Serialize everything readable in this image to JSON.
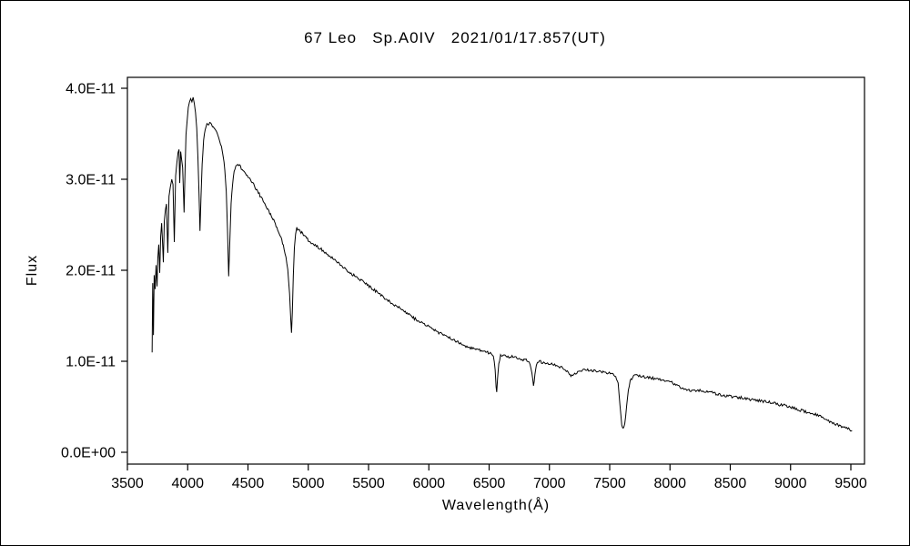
{
  "observation": {
    "object": "67 Leo",
    "spectral_type": "A0IV",
    "date_ut": "2021/01/17.857"
  },
  "chart_data": {
    "type": "line",
    "title": "67 Leo   Sp.A0IV   2021/01/17.857(UT)",
    "xlabel": "Wavelength(Å)",
    "ylabel": "Flux",
    "xlim": [
      3500,
      9500
    ],
    "ylim_unit_1e-11": [
      0,
      4.0
    ],
    "grid": false,
    "legend": "none",
    "line_color": "#000000",
    "background": "#ffffff",
    "x_ticks": [
      3500,
      4000,
      4500,
      5000,
      5500,
      6000,
      6500,
      7000,
      7500,
      8000,
      8500,
      9000,
      9500
    ],
    "y_ticks": [
      {
        "value": 0.0,
        "label": "0.0E+00"
      },
      {
        "value": 1.0,
        "label": "1.0E-11"
      },
      {
        "value": 2.0,
        "label": "2.0E-11"
      },
      {
        "value": 3.0,
        "label": "3.0E-11"
      },
      {
        "value": 4.0,
        "label": "4.0E-11"
      }
    ],
    "y_value_scale": 1e-11,
    "render": {
      "noise_amplitude": 0.015,
      "sample_step_angstrom": 8
    },
    "series": [
      {
        "name": "67 Leo spectrum",
        "x": [
          3705,
          3710,
          3716,
          3722,
          3730,
          3738,
          3746,
          3752,
          3760,
          3768,
          3776,
          3784,
          3792,
          3798,
          3806,
          3815,
          3824,
          3835,
          3845,
          3856,
          3868,
          3878,
          3889,
          3900,
          3910,
          3920,
          3928,
          3934,
          3942,
          3950,
          3958,
          3965,
          3970,
          3978,
          3986,
          3995,
          4005,
          4015,
          4025,
          4035,
          4045,
          4055,
          4065,
          4075,
          4085,
          4094,
          4102,
          4110,
          4120,
          4132,
          4145,
          4160,
          4175,
          4190,
          4205,
          4220,
          4235,
          4250,
          4265,
          4280,
          4295,
          4308,
          4320,
          4330,
          4340,
          4350,
          4360,
          4372,
          4385,
          4400,
          4415,
          4430,
          4445,
          4460,
          4480,
          4500,
          4520,
          4540,
          4560,
          4580,
          4600,
          4620,
          4640,
          4660,
          4680,
          4700,
          4720,
          4740,
          4760,
          4780,
          4800,
          4815,
          4830,
          4845,
          4855,
          4861,
          4868,
          4876,
          4885,
          4895,
          4905,
          4920,
          4940,
          4960,
          4980,
          5000,
          5025,
          5050,
          5075,
          5100,
          5130,
          5160,
          5190,
          5220,
          5250,
          5280,
          5310,
          5340,
          5370,
          5400,
          5430,
          5460,
          5490,
          5520,
          5550,
          5580,
          5610,
          5640,
          5670,
          5700,
          5730,
          5760,
          5790,
          5820,
          5850,
          5880,
          5910,
          5940,
          5970,
          6000,
          6030,
          6060,
          6090,
          6120,
          6150,
          6180,
          6210,
          6240,
          6270,
          6300,
          6330,
          6360,
          6390,
          6420,
          6450,
          6480,
          6510,
          6535,
          6550,
          6558,
          6563,
          6570,
          6580,
          6595,
          6615,
          6640,
          6665,
          6690,
          6715,
          6740,
          6765,
          6790,
          6815,
          6840,
          6855,
          6868,
          6880,
          6892,
          6910,
          6935,
          6960,
          6985,
          7010,
          7035,
          7060,
          7085,
          7110,
          7140,
          7165,
          7185,
          7210,
          7235,
          7260,
          7285,
          7310,
          7340,
          7370,
          7400,
          7430,
          7460,
          7490,
          7520,
          7550,
          7570,
          7585,
          7600,
          7612,
          7625,
          7640,
          7655,
          7670,
          7690,
          7715,
          7740,
          7765,
          7790,
          7815,
          7840,
          7865,
          7890,
          7915,
          7940,
          7965,
          7990,
          8015,
          8040,
          8065,
          8090,
          8115,
          8140,
          8165,
          8190,
          8215,
          8240,
          8265,
          8290,
          8315,
          8340,
          8365,
          8390,
          8415,
          8440,
          8465,
          8490,
          8515,
          8540,
          8565,
          8590,
          8615,
          8640,
          8665,
          8690,
          8715,
          8740,
          8765,
          8790,
          8815,
          8840,
          8865,
          8890,
          8915,
          8940,
          8965,
          8990,
          9015,
          9040,
          9065,
          9090,
          9115,
          9140,
          9165,
          9190,
          9215,
          9240,
          9265,
          9290,
          9315,
          9340,
          9365,
          9390,
          9415,
          9440,
          9465,
          9490,
          9510
        ],
        "y": [
          1.1,
          1.87,
          1.3,
          1.95,
          1.78,
          2.05,
          1.82,
          2.12,
          2.28,
          1.98,
          2.38,
          2.52,
          2.3,
          2.08,
          2.55,
          2.66,
          2.72,
          2.18,
          2.8,
          2.92,
          3.0,
          2.95,
          2.32,
          3.05,
          3.18,
          3.28,
          3.32,
          2.96,
          3.3,
          3.22,
          3.12,
          2.85,
          2.62,
          3.1,
          3.48,
          3.65,
          3.78,
          3.85,
          3.9,
          3.86,
          3.9,
          3.82,
          3.72,
          3.55,
          3.25,
          2.85,
          2.42,
          2.78,
          3.18,
          3.42,
          3.55,
          3.62,
          3.6,
          3.63,
          3.58,
          3.55,
          3.52,
          3.48,
          3.42,
          3.36,
          3.25,
          3.1,
          2.85,
          2.45,
          1.92,
          2.35,
          2.72,
          2.95,
          3.08,
          3.14,
          3.17,
          3.15,
          3.12,
          3.1,
          3.06,
          3.03,
          2.99,
          2.96,
          2.91,
          2.87,
          2.82,
          2.78,
          2.73,
          2.68,
          2.63,
          2.58,
          2.53,
          2.47,
          2.41,
          2.33,
          2.24,
          2.14,
          2.0,
          1.75,
          1.45,
          1.3,
          1.55,
          1.95,
          2.25,
          2.4,
          2.46,
          2.44,
          2.42,
          2.39,
          2.36,
          2.33,
          2.3,
          2.28,
          2.26,
          2.24,
          2.2,
          2.17,
          2.14,
          2.11,
          2.08,
          2.04,
          2.01,
          1.98,
          1.95,
          1.93,
          1.9,
          1.87,
          1.84,
          1.81,
          1.78,
          1.75,
          1.72,
          1.69,
          1.66,
          1.63,
          1.61,
          1.58,
          1.55,
          1.52,
          1.5,
          1.47,
          1.45,
          1.42,
          1.4,
          1.38,
          1.35,
          1.33,
          1.31,
          1.29,
          1.27,
          1.25,
          1.23,
          1.21,
          1.19,
          1.17,
          1.16,
          1.14,
          1.13,
          1.12,
          1.11,
          1.1,
          1.09,
          1.07,
          0.92,
          0.72,
          0.66,
          0.8,
          0.98,
          1.06,
          1.07,
          1.06,
          1.05,
          1.05,
          1.04,
          1.03,
          1.02,
          1.02,
          1.01,
          0.97,
          0.88,
          0.73,
          0.85,
          0.97,
          1.0,
          0.99,
          0.98,
          0.98,
          0.97,
          0.96,
          0.95,
          0.94,
          0.93,
          0.9,
          0.86,
          0.84,
          0.86,
          0.88,
          0.9,
          0.91,
          0.91,
          0.9,
          0.9,
          0.89,
          0.88,
          0.88,
          0.87,
          0.86,
          0.84,
          0.76,
          0.52,
          0.3,
          0.26,
          0.32,
          0.5,
          0.68,
          0.78,
          0.83,
          0.84,
          0.84,
          0.83,
          0.83,
          0.82,
          0.82,
          0.81,
          0.81,
          0.8,
          0.8,
          0.79,
          0.79,
          0.77,
          0.75,
          0.73,
          0.71,
          0.7,
          0.69,
          0.68,
          0.67,
          0.67,
          0.68,
          0.68,
          0.67,
          0.67,
          0.66,
          0.65,
          0.64,
          0.63,
          0.63,
          0.62,
          0.62,
          0.61,
          0.61,
          0.6,
          0.6,
          0.59,
          0.59,
          0.58,
          0.58,
          0.57,
          0.57,
          0.56,
          0.56,
          0.55,
          0.55,
          0.54,
          0.53,
          0.52,
          0.52,
          0.51,
          0.5,
          0.49,
          0.48,
          0.47,
          0.46,
          0.45,
          0.44,
          0.43,
          0.42,
          0.41,
          0.4,
          0.38,
          0.36,
          0.34,
          0.32,
          0.31,
          0.3,
          0.29,
          0.28,
          0.27,
          0.25,
          0.24
        ]
      }
    ]
  }
}
